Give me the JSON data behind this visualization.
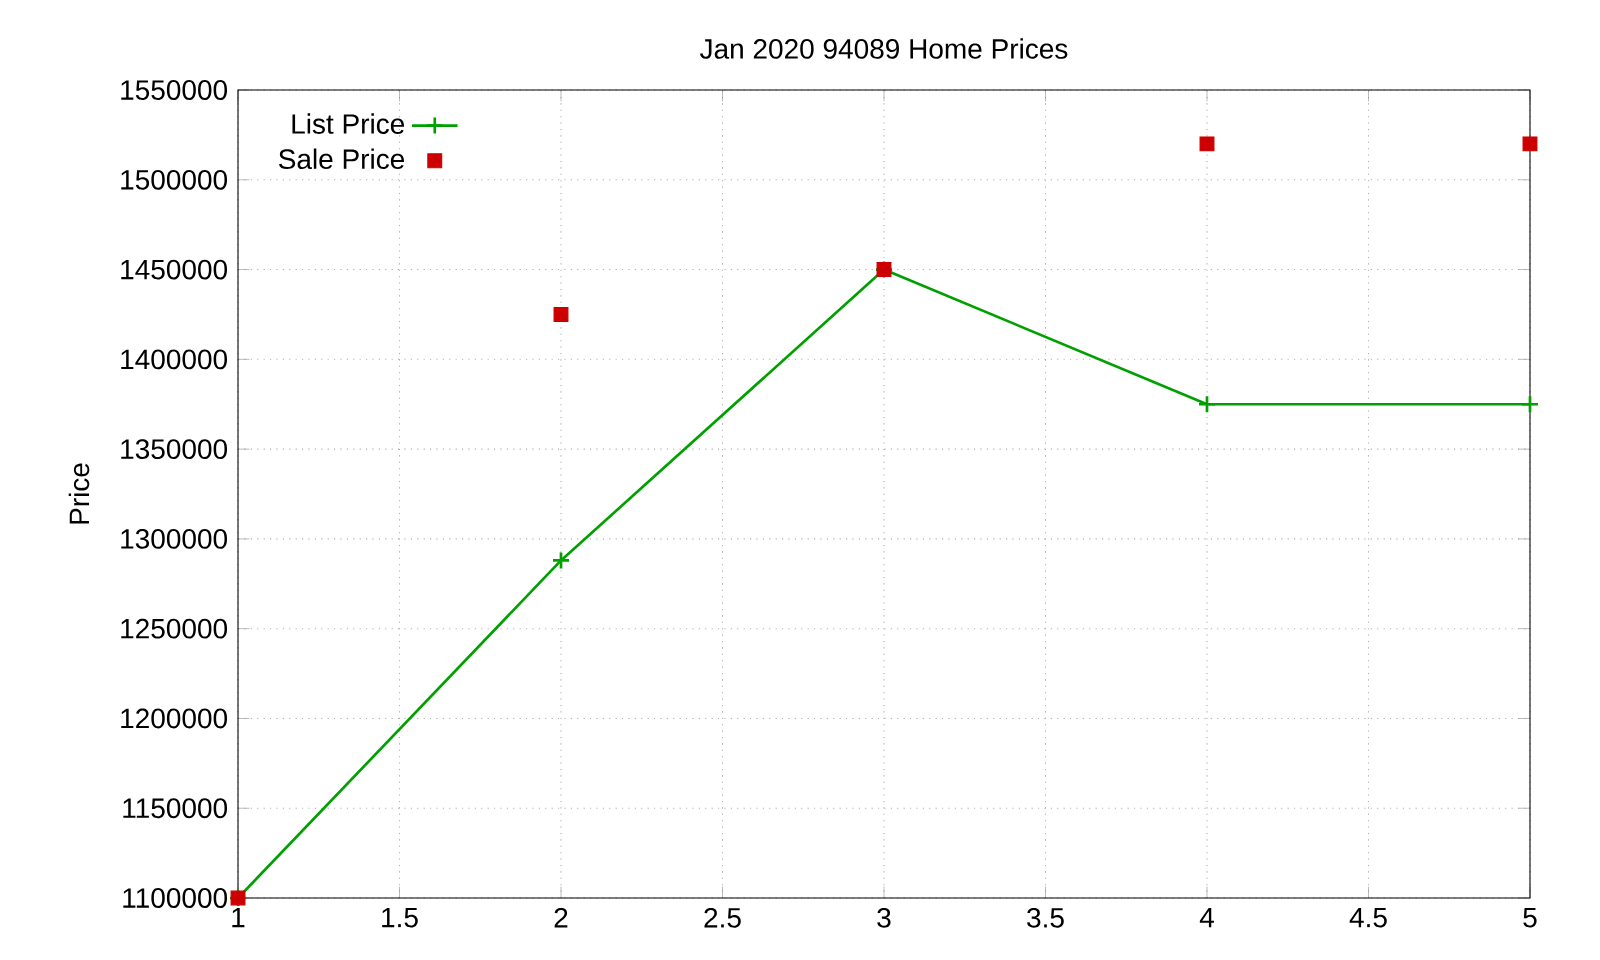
{
  "chart_data": {
    "type": "line",
    "title": "Jan 2020 94089 Home Prices",
    "ylabel": "Price",
    "x": [
      1,
      2,
      3,
      4,
      5
    ],
    "series": [
      {
        "name": "List Price",
        "color": "#00a000",
        "marker": "cross",
        "values": [
          1100000,
          1288000,
          1450000,
          1375000,
          1375000
        ]
      },
      {
        "name": "Sale Price",
        "type": "scatter",
        "color": "#cc0000",
        "marker": "square",
        "values": [
          1100000,
          1425000,
          1450000,
          1520000,
          1520000
        ]
      }
    ],
    "xlim": [
      1,
      5
    ],
    "ylim": [
      1100000,
      1550000
    ],
    "xticks": [
      1,
      1.5,
      2,
      2.5,
      3,
      3.5,
      4,
      4.5,
      5
    ],
    "yticks": [
      1100000,
      1150000,
      1200000,
      1250000,
      1300000,
      1350000,
      1400000,
      1450000,
      1500000,
      1550000
    ],
    "grid": true,
    "legend": "top left"
  }
}
